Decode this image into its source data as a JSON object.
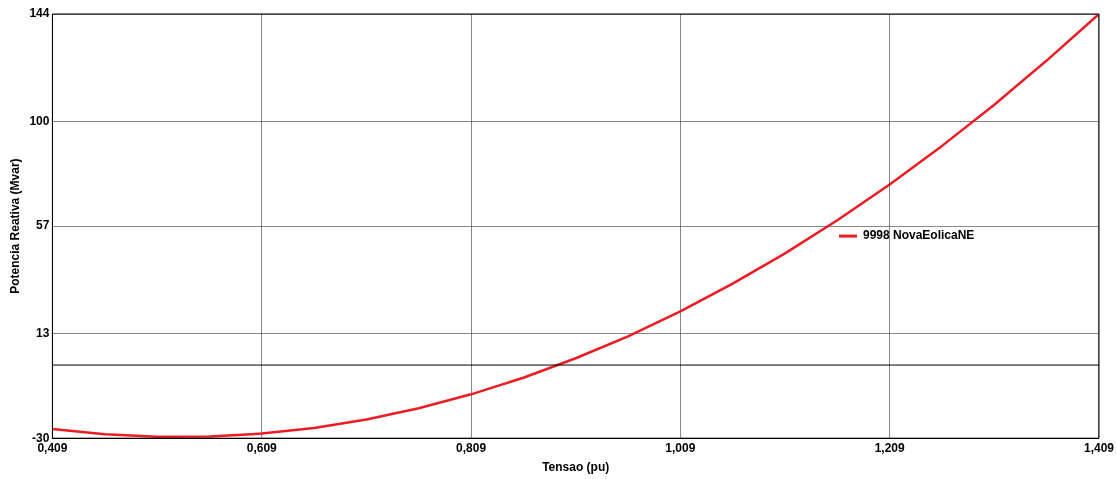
{
  "chart_data": {
    "type": "line",
    "xlabel": "Tensao (pu)",
    "ylabel": "Potencia Reativa (Mvar)",
    "xlim": [
      0.409,
      1.409
    ],
    "xticks": [
      {
        "value": 0.409,
        "label": "0,409"
      },
      {
        "value": 0.609,
        "label": "0,609"
      },
      {
        "value": 0.809,
        "label": "0,809"
      },
      {
        "value": 1.009,
        "label": "1,009"
      },
      {
        "value": 1.209,
        "label": "1,209"
      },
      {
        "value": 1.409,
        "label": "1,409"
      }
    ],
    "ylim": [
      -30,
      144
    ],
    "yticks": [
      -30,
      13,
      57,
      100,
      144
    ],
    "grid": true,
    "legend": "right",
    "marker": "none",
    "line_style": "solid",
    "ref_lines": [
      {
        "axis": "y",
        "value": 0,
        "color": "#000000"
      }
    ],
    "x": [
      0.409,
      0.459,
      0.509,
      0.559,
      0.609,
      0.659,
      0.709,
      0.759,
      0.809,
      0.859,
      0.909,
      0.959,
      1.009,
      1.059,
      1.109,
      1.159,
      1.209,
      1.259,
      1.309,
      1.359,
      1.409
    ],
    "series": [
      {
        "name": "9998 NovaEolicaNE",
        "color": "#ed1c24",
        "values": [
          -26.2,
          -28.4,
          -29.4,
          -29.3,
          -28.1,
          -25.8,
          -22.3,
          -17.7,
          -12.0,
          -5.2,
          2.8,
          11.8,
          22.0,
          33.4,
          45.8,
          59.4,
          74.1,
          89.9,
          106.8,
          124.9,
          144.0
        ]
      }
    ]
  }
}
